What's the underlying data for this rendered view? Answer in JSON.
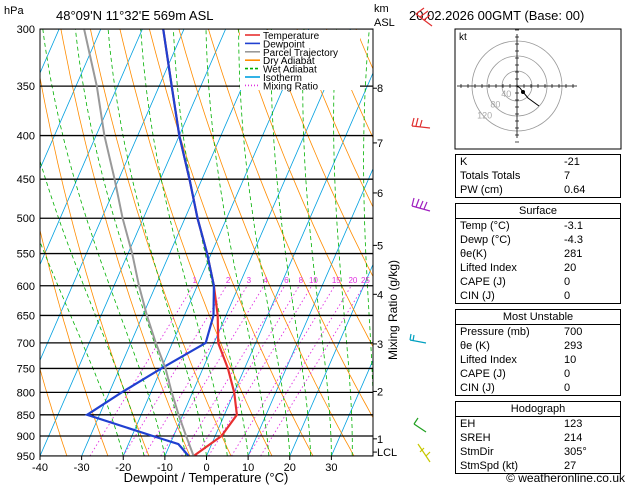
{
  "header": {
    "unit_pressure": "hPa",
    "location": "48°09'N  11°32'E  569m  ASL",
    "unit_height": "km",
    "unit_height2": "ASL",
    "datetime": "20.02.2026  00GMT  (Base: 00)"
  },
  "footer": {
    "copyright": "© weatheronline.co.uk"
  },
  "hodograph": {
    "title": "kt",
    "ring_labels": [
      "40",
      "80",
      "120"
    ]
  },
  "chart_data": {
    "type": "line",
    "title": "Skew-T log-P diagram",
    "xlabel": "Dewpoint / Temperature (°C)",
    "ylabel_right": "Mixing Ratio (g/kg)",
    "xlim": [
      -40,
      40
    ],
    "ylim_hpa": [
      950,
      300
    ],
    "x_ticks": [
      -40,
      -30,
      -20,
      -10,
      0,
      10,
      20,
      30
    ],
    "pressure_levels": [
      300,
      350,
      400,
      450,
      500,
      550,
      600,
      650,
      700,
      750,
      800,
      850,
      900,
      950
    ],
    "height_ticks_km": [
      {
        "km": "8",
        "p": 352
      },
      {
        "km": "7",
        "p": 408
      },
      {
        "km": "6",
        "p": 467
      },
      {
        "km": "5",
        "p": 538
      },
      {
        "km": "4",
        "p": 614
      },
      {
        "km": "3",
        "p": 702
      },
      {
        "km": "2",
        "p": 798
      },
      {
        "km": "1",
        "p": 907
      },
      {
        "km": "LCL",
        "p": 940
      }
    ],
    "mixing_ratio_labels": [
      "1",
      "2",
      "3",
      "4",
      "6",
      "8",
      "10",
      "15",
      "20",
      "25"
    ],
    "legend": [
      {
        "label": "Temperature",
        "color": "#e83030",
        "style": "solid"
      },
      {
        "label": "Dewpoint",
        "color": "#2040d0",
        "style": "solid"
      },
      {
        "label": "Parcel Trajectory",
        "color": "#999999",
        "style": "solid"
      },
      {
        "label": "Dry Adiabat",
        "color": "#ff8c00",
        "style": "solid"
      },
      {
        "label": "Wet Adiabat",
        "color": "#00b000",
        "style": "dashed"
      },
      {
        "label": "Isotherm",
        "color": "#00a0e0",
        "style": "solid"
      },
      {
        "label": "Mixing Ratio",
        "color": "#e030e0",
        "style": "dotted"
      }
    ],
    "series": [
      {
        "name": "Temperature",
        "values": [
          {
            "p": 950,
            "t": -3.1
          },
          {
            "p": 900,
            "t": 1.5
          },
          {
            "p": 850,
            "t": 3
          },
          {
            "p": 800,
            "t": 0
          },
          {
            "p": 750,
            "t": -4
          },
          {
            "p": 700,
            "t": -9
          },
          {
            "p": 650,
            "t": -12
          },
          {
            "p": 600,
            "t": -16
          },
          {
            "p": 550,
            "t": -21
          },
          {
            "p": 500,
            "t": -27
          },
          {
            "p": 450,
            "t": -33
          },
          {
            "p": 400,
            "t": -40
          },
          {
            "p": 350,
            "t": -47
          },
          {
            "p": 300,
            "t": -55
          }
        ]
      },
      {
        "name": "Dewpoint",
        "values": [
          {
            "p": 950,
            "t": -4.3
          },
          {
            "p": 920,
            "t": -8
          },
          {
            "p": 900,
            "t": -15
          },
          {
            "p": 850,
            "t": -33
          },
          {
            "p": 800,
            "t": -27
          },
          {
            "p": 750,
            "t": -20
          },
          {
            "p": 700,
            "t": -12
          },
          {
            "p": 650,
            "t": -13
          },
          {
            "p": 600,
            "t": -16
          },
          {
            "p": 550,
            "t": -21
          },
          {
            "p": 500,
            "t": -27
          },
          {
            "p": 450,
            "t": -33
          },
          {
            "p": 400,
            "t": -40
          },
          {
            "p": 350,
            "t": -47
          },
          {
            "p": 300,
            "t": -55
          }
        ]
      },
      {
        "name": "Parcel Trajectory",
        "values": [
          {
            "p": 950,
            "t": -3.1
          },
          {
            "p": 900,
            "t": -7
          },
          {
            "p": 850,
            "t": -11
          },
          {
            "p": 800,
            "t": -15
          },
          {
            "p": 750,
            "t": -19
          },
          {
            "p": 700,
            "t": -24
          },
          {
            "p": 650,
            "t": -29
          },
          {
            "p": 600,
            "t": -34
          },
          {
            "p": 550,
            "t": -39
          },
          {
            "p": 500,
            "t": -45
          },
          {
            "p": 450,
            "t": -51
          },
          {
            "p": 400,
            "t": -58
          },
          {
            "p": 350,
            "t": -65
          },
          {
            "p": 300,
            "t": -74
          }
        ]
      }
    ],
    "hodograph_points": [
      [
        0,
        0
      ],
      [
        3,
        -2
      ],
      [
        6,
        -6
      ],
      [
        11,
        -12
      ],
      [
        22,
        -20
      ]
    ]
  },
  "indices": {
    "general": [
      {
        "label": "K",
        "value": "-21"
      },
      {
        "label": "Totals Totals",
        "value": "7"
      },
      {
        "label": "PW (cm)",
        "value": "0.64"
      }
    ],
    "surface_title": "Surface",
    "surface": [
      {
        "label": "Temp (°C)",
        "value": "-3.1"
      },
      {
        "label": "Dewp (°C)",
        "value": "-4.3"
      },
      {
        "label": "θe(K)",
        "value": "281"
      },
      {
        "label": "Lifted Index",
        "value": "20"
      },
      {
        "label": "CAPE (J)",
        "value": "0"
      },
      {
        "label": "CIN (J)",
        "value": "0"
      }
    ],
    "unstable_title": "Most Unstable",
    "unstable": [
      {
        "label": "Pressure (mb)",
        "value": "700"
      },
      {
        "label": "θe (K)",
        "value": "293"
      },
      {
        "label": "Lifted Index",
        "value": "10"
      },
      {
        "label": "CAPE (J)",
        "value": "0"
      },
      {
        "label": "CIN (J)",
        "value": "0"
      }
    ],
    "hodograph_title": "Hodograph",
    "hodo": [
      {
        "label": "EH",
        "value": "123"
      },
      {
        "label": "SREH",
        "value": "214"
      },
      {
        "label": "StmDir",
        "value": "305°"
      },
      {
        "label": "StmSpd (kt)",
        "value": "27"
      }
    ]
  },
  "colors": {
    "temp": "#e83030",
    "dew": "#2040d0",
    "parcel": "#999999",
    "dry": "#ff8c00",
    "wet": "#00b000",
    "iso": "#00a0e0",
    "mix": "#e030e0"
  }
}
